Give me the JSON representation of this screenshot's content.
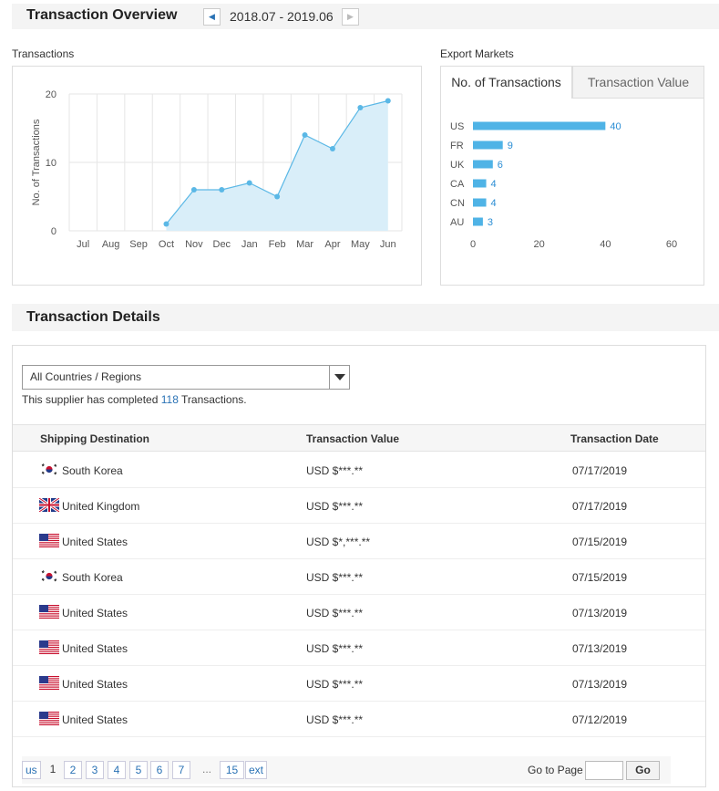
{
  "overview": {
    "title": "Transaction Overview",
    "period": "2018.07 - 2019.06",
    "prev_icon": "◀",
    "next_icon": "▶"
  },
  "transactions_chart": {
    "label": "Transactions",
    "ylabel": "No. of Transactions"
  },
  "export_markets": {
    "label": "Export Markets",
    "tabs": [
      {
        "label": "No. of Transactions",
        "active": true
      },
      {
        "label": "Transaction Value",
        "active": false
      }
    ]
  },
  "chart_data": [
    {
      "type": "area",
      "title": "Transactions",
      "xlabel": "",
      "ylabel": "No. of Transactions",
      "categories": [
        "Jul",
        "Aug",
        "Sep",
        "Oct",
        "Nov",
        "Dec",
        "Jan",
        "Feb",
        "Mar",
        "Apr",
        "May",
        "Jun"
      ],
      "values": [
        null,
        null,
        null,
        1,
        6,
        6,
        7,
        5,
        14,
        12,
        18,
        19
      ],
      "yticks": [
        0,
        10,
        20
      ],
      "ylim": [
        0,
        20
      ],
      "grid": true,
      "color": "#5bb8e6",
      "fill": "#d9eef9"
    },
    {
      "type": "bar",
      "orientation": "horizontal",
      "title": "No. of Transactions",
      "categories": [
        "US",
        "FR",
        "UK",
        "CA",
        "CN",
        "AU"
      ],
      "values": [
        40,
        9,
        6,
        4,
        4,
        3
      ],
      "xticks": [
        0,
        20,
        40,
        60
      ],
      "xlim": [
        0,
        60
      ],
      "color": "#4fb3e6"
    }
  ],
  "details": {
    "title": "Transaction Details",
    "filter_value": "All Countries / Regions",
    "summary_prefix": "This supplier has completed",
    "summary_count": "118",
    "summary_suffix": "Transactions.",
    "columns": [
      "Shipping Destination",
      "Transaction Value",
      "Transaction Date"
    ],
    "rows": [
      {
        "flag": "kr",
        "destination": "South Korea",
        "value": "USD $***.**",
        "date": "07/17/2019"
      },
      {
        "flag": "uk",
        "destination": "United Kingdom",
        "value": "USD $***.**",
        "date": "07/17/2019"
      },
      {
        "flag": "us",
        "destination": "United States",
        "value": "USD $*,***.**",
        "date": "07/15/2019"
      },
      {
        "flag": "kr",
        "destination": "South Korea",
        "value": "USD $***.**",
        "date": "07/15/2019"
      },
      {
        "flag": "us",
        "destination": "United States",
        "value": "USD $***.**",
        "date": "07/13/2019"
      },
      {
        "flag": "us",
        "destination": "United States",
        "value": "USD $***.**",
        "date": "07/13/2019"
      },
      {
        "flag": "us",
        "destination": "United States",
        "value": "USD $***.**",
        "date": "07/13/2019"
      },
      {
        "flag": "us",
        "destination": "United States",
        "value": "USD $***.**",
        "date": "07/12/2019"
      }
    ]
  },
  "pager": {
    "prev_label": "us",
    "current": "1",
    "pages": [
      "2",
      "3",
      "4",
      "5",
      "6",
      "7"
    ],
    "ellipsis": "...",
    "last": "15",
    "next_label": "ext",
    "goto_label": "Go to Page",
    "go_label": "Go"
  }
}
